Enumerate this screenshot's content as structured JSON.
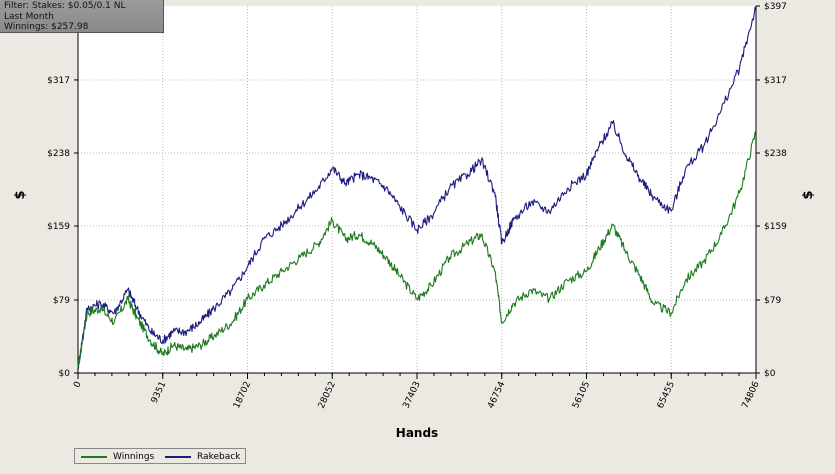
{
  "filter": {
    "line1": "Filter: Stakes: $0.05/0.1 NL",
    "line2": "Last Month",
    "line3": "Winnings: $257.98"
  },
  "colors": {
    "winnings": "#1e7a1e",
    "rakeback": "#1c1c80",
    "grid": "#b8b8b8",
    "plot_bg": "#ffffff"
  },
  "chart_data": {
    "type": "line",
    "xlabel": "Hands",
    "ylabel_left": "$",
    "ylabel_right": "$",
    "xlim": [
      0,
      74806
    ],
    "ylim": [
      0,
      397
    ],
    "x_ticks": [
      0,
      9351,
      18702,
      28052,
      37403,
      46754,
      56105,
      65455,
      74806
    ],
    "x_tick_labels": [
      "0",
      "9351",
      "18702",
      "28052",
      "37403",
      "46754",
      "56105",
      "65455",
      "74806"
    ],
    "y_ticks": [
      0,
      79,
      159,
      238,
      317,
      397
    ],
    "y_tick_labels": [
      "$0",
      "$79",
      "$159",
      "$238",
      "$317",
      "$397"
    ],
    "grid": true,
    "legend": "bottom-left",
    "series": [
      {
        "name": "Winnings",
        "color": "#1e7a1e",
        "x": [
          0,
          1000,
          2500,
          4000,
          5500,
          6500,
          8000,
          9351,
          10500,
          12000,
          13500,
          15000,
          17000,
          18702,
          20500,
          22500,
          24500,
          26500,
          28052,
          29500,
          31000,
          32500,
          34000,
          35500,
          37403,
          39000,
          41000,
          43000,
          44500,
          46000,
          46754,
          48000,
          50000,
          52000,
          54000,
          56105,
          57500,
          59000,
          60500,
          62000,
          63500,
          65455,
          67000,
          69000,
          71000,
          73000,
          74806
        ],
        "y": [
          5,
          65,
          70,
          55,
          80,
          60,
          35,
          20,
          30,
          25,
          30,
          40,
          55,
          80,
          95,
          110,
          125,
          140,
          165,
          145,
          150,
          140,
          125,
          105,
          80,
          95,
          125,
          140,
          150,
          110,
          55,
          75,
          90,
          80,
          100,
          110,
          135,
          160,
          130,
          105,
          75,
          65,
          100,
          120,
          150,
          195,
          262
        ]
      },
      {
        "name": "Rakeback",
        "color": "#1c1c80",
        "x": [
          0,
          1000,
          2500,
          4000,
          5500,
          6500,
          8000,
          9351,
          10500,
          12000,
          13500,
          15000,
          17000,
          18702,
          20500,
          22500,
          24500,
          26500,
          28052,
          29500,
          31000,
          32500,
          34000,
          35500,
          37403,
          39000,
          41000,
          43000,
          44500,
          46000,
          46754,
          48000,
          50000,
          52000,
          54000,
          56105,
          57500,
          59000,
          60500,
          62000,
          63500,
          65455,
          67000,
          69000,
          71000,
          73000,
          74806
        ],
        "y": [
          5,
          70,
          75,
          65,
          90,
          70,
          45,
          35,
          45,
          45,
          55,
          70,
          90,
          115,
          145,
          160,
          180,
          200,
          222,
          205,
          215,
          210,
          200,
          180,
          155,
          170,
          200,
          215,
          230,
          195,
          140,
          165,
          185,
          175,
          200,
          215,
          245,
          270,
          235,
          210,
          190,
          175,
          220,
          245,
          285,
          330,
          397
        ]
      }
    ]
  }
}
